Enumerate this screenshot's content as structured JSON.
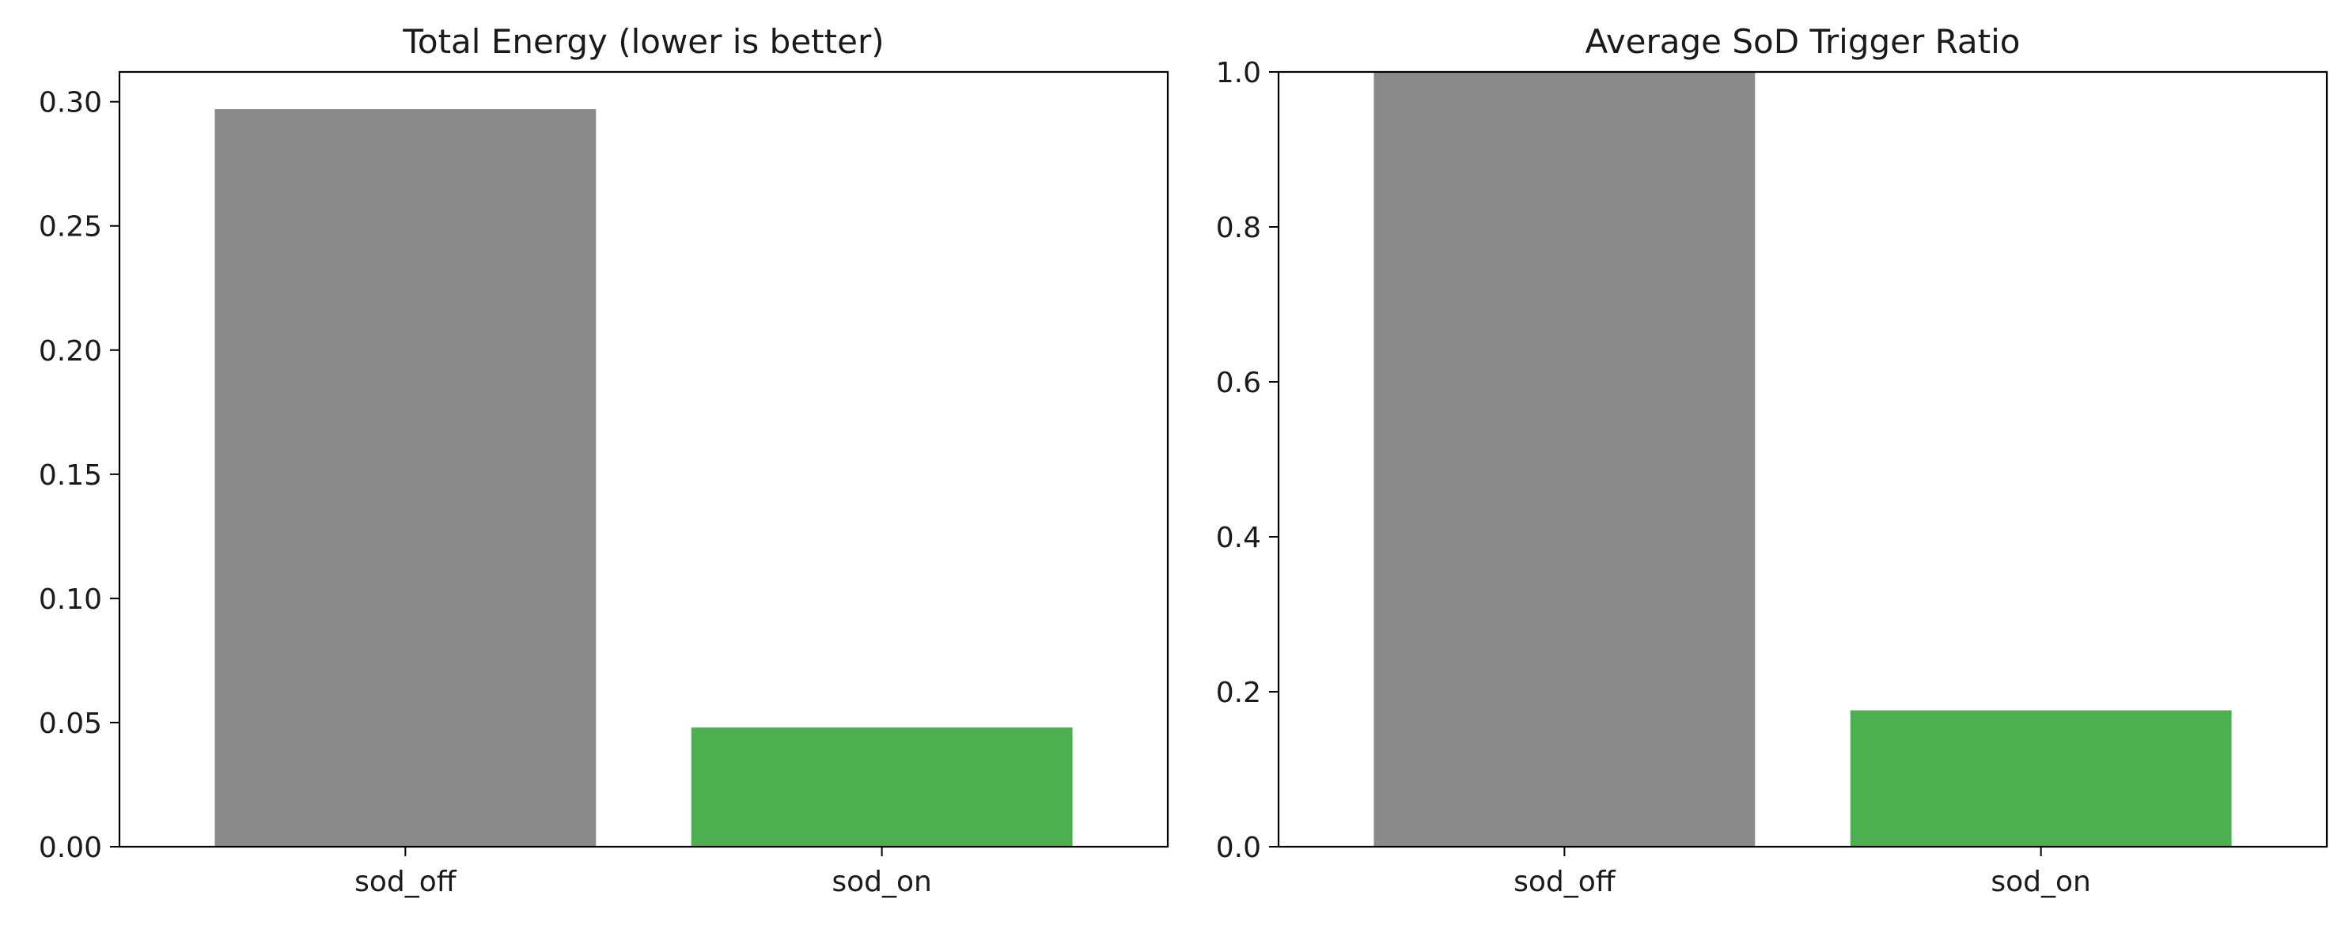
{
  "chart_data": [
    {
      "type": "bar",
      "title": "Total Energy (lower is better)",
      "xlabel": "",
      "ylabel": "",
      "categories": [
        "sod_off",
        "sod_on"
      ],
      "values": [
        0.297,
        0.048
      ],
      "colors": [
        "#8a8a8a",
        "#4caf50"
      ],
      "ylim": [
        0,
        0.312
      ],
      "yticks": [
        0.0,
        0.05,
        0.1,
        0.15,
        0.2,
        0.25,
        0.3
      ],
      "ytick_labels": [
        "0.00",
        "0.05",
        "0.10",
        "0.15",
        "0.20",
        "0.25",
        "0.30"
      ],
      "grid": false,
      "legend": "none"
    },
    {
      "type": "bar",
      "title": "Average SoD Trigger Ratio",
      "xlabel": "",
      "ylabel": "",
      "categories": [
        "sod_off",
        "sod_on"
      ],
      "values": [
        1.0,
        0.176
      ],
      "colors": [
        "#8a8a8a",
        "#4caf50"
      ],
      "ylim": [
        0,
        1.0
      ],
      "yticks": [
        0.0,
        0.2,
        0.4,
        0.6,
        0.8,
        1.0
      ],
      "ytick_labels": [
        "0.0",
        "0.2",
        "0.4",
        "0.6",
        "0.8",
        "1.0"
      ],
      "grid": false,
      "legend": "none"
    }
  ]
}
